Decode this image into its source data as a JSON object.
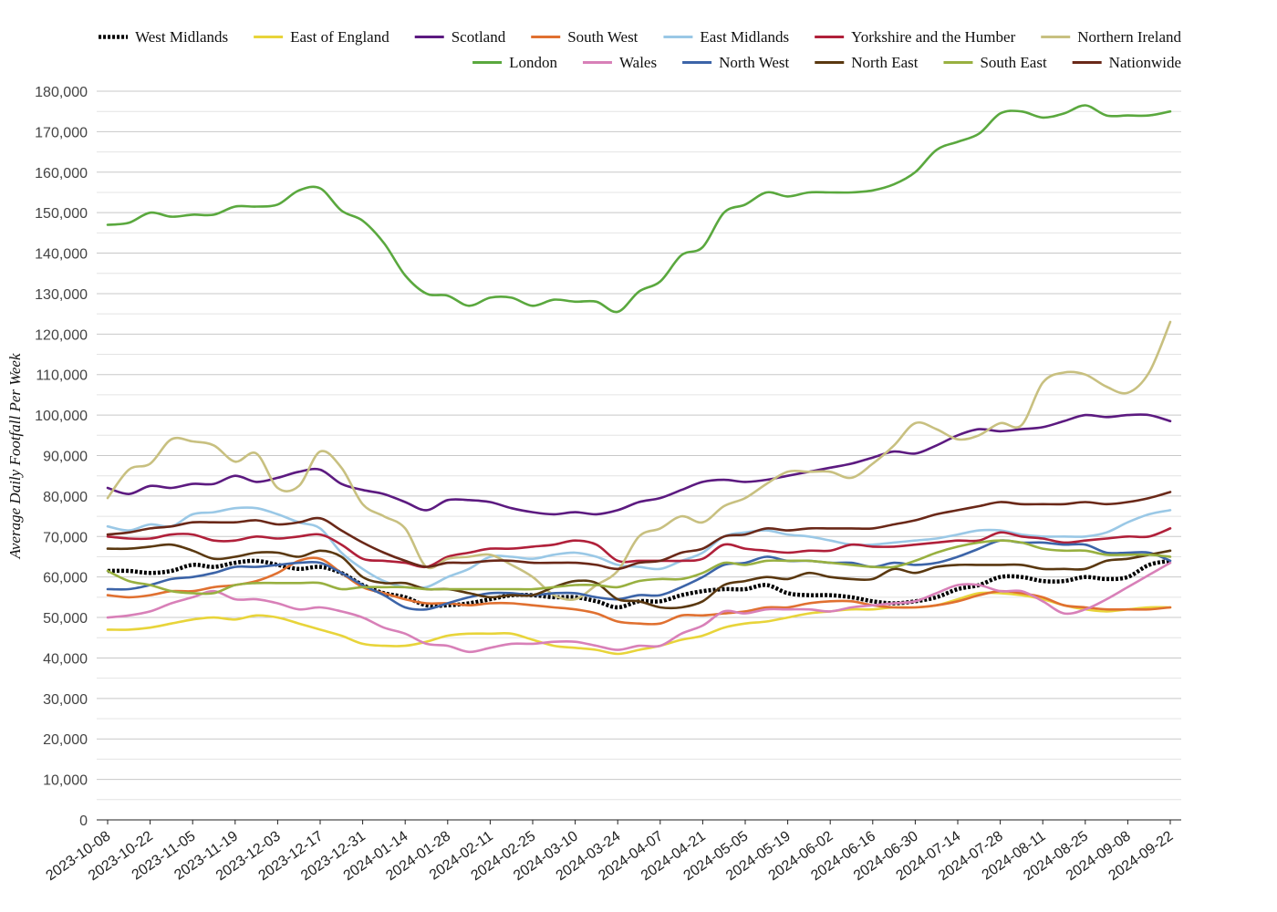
{
  "chart_data": {
    "type": "line",
    "ylabel": "Average Daily Footfall Per Week",
    "xlabel": "",
    "ylim": [
      0,
      180000
    ],
    "y_tick_step": 10000,
    "y_tick_labels": [
      "0",
      "10,000",
      "20,000",
      "30,000",
      "40,000",
      "50,000",
      "60,000",
      "70,000",
      "80,000",
      "90,000",
      "100,000",
      "110,000",
      "120,000",
      "130,000",
      "140,000",
      "150,000",
      "160,000",
      "170,000",
      "180,000"
    ],
    "grid": true,
    "minor_grid": true,
    "legend_position": "top",
    "x_tick_labels": [
      "2023-10-08",
      "2023-10-22",
      "2023-11-05",
      "2023-11-19",
      "2023-12-03",
      "2023-12-17",
      "2023-12-31",
      "2024-01-14",
      "2024-01-28",
      "2024-02-11",
      "2024-02-25",
      "2024-03-10",
      "2024-03-24",
      "2024-04-07",
      "2024-04-21",
      "2024-05-05",
      "2024-05-19",
      "2024-06-02",
      "2024-06-16",
      "2024-06-30",
      "2024-07-14",
      "2024-07-28",
      "2024-08-11",
      "2024-08-25",
      "2024-09-08",
      "2024-09-22"
    ],
    "x": [
      "2023-10-08",
      "2023-10-15",
      "2023-10-22",
      "2023-10-29",
      "2023-11-05",
      "2023-11-12",
      "2023-11-19",
      "2023-11-26",
      "2023-12-03",
      "2023-12-10",
      "2023-12-17",
      "2023-12-24",
      "2023-12-31",
      "2024-01-07",
      "2024-01-14",
      "2024-01-21",
      "2024-01-28",
      "2024-02-04",
      "2024-02-11",
      "2024-02-18",
      "2024-02-25",
      "2024-03-03",
      "2024-03-10",
      "2024-03-17",
      "2024-03-24",
      "2024-03-31",
      "2024-04-07",
      "2024-04-14",
      "2024-04-21",
      "2024-04-28",
      "2024-05-05",
      "2024-05-12",
      "2024-05-19",
      "2024-05-26",
      "2024-06-02",
      "2024-06-09",
      "2024-06-16",
      "2024-06-23",
      "2024-06-30",
      "2024-07-07",
      "2024-07-14",
      "2024-07-21",
      "2024-07-28",
      "2024-08-04",
      "2024-08-11",
      "2024-08-18",
      "2024-08-25",
      "2024-09-01",
      "2024-09-08",
      "2024-09-15",
      "2024-09-22"
    ],
    "series": [
      {
        "name": "West Midlands",
        "color": "#000000",
        "dashed": true,
        "values": [
          61500,
          61500,
          61000,
          61500,
          63000,
          62500,
          63500,
          64000,
          63000,
          62000,
          62500,
          61000,
          58000,
          56000,
          55000,
          53000,
          53000,
          53500,
          54500,
          55500,
          55500,
          55000,
          55000,
          54000,
          52500,
          54000,
          54000,
          55500,
          56500,
          57000,
          57000,
          58000,
          56000,
          55500,
          55500,
          55000,
          54000,
          53500,
          54000,
          55000,
          57000,
          58000,
          60000,
          60000,
          59000,
          59000,
          60000,
          59500,
          60000,
          63000,
          64000
        ]
      },
      {
        "name": "East of England",
        "color": "#e8d43a",
        "dashed": false,
        "values": [
          47000,
          47000,
          47500,
          48500,
          49500,
          50000,
          49500,
          50500,
          50000,
          48500,
          47000,
          45500,
          43500,
          43000,
          43000,
          44000,
          45500,
          46000,
          46000,
          46000,
          44500,
          43000,
          42500,
          42000,
          41000,
          42000,
          43000,
          44500,
          45500,
          47500,
          48500,
          49000,
          50000,
          51000,
          51500,
          52000,
          52000,
          52500,
          52500,
          53000,
          54500,
          56000,
          56000,
          55500,
          54500,
          53000,
          52000,
          51500,
          52000,
          52500,
          52500
        ]
      },
      {
        "name": "Scotland",
        "color": "#5c1a80",
        "dashed": false,
        "values": [
          82000,
          80500,
          82500,
          82000,
          83000,
          83000,
          85000,
          83500,
          84500,
          86000,
          86500,
          83000,
          81500,
          80500,
          78500,
          76500,
          79000,
          79000,
          78500,
          77000,
          76000,
          75500,
          76000,
          75500,
          76500,
          78500,
          79500,
          81500,
          83500,
          84000,
          83500,
          84000,
          85000,
          86000,
          87000,
          88000,
          89500,
          91000,
          90500,
          92500,
          95000,
          96500,
          96000,
          96500,
          97000,
          98500,
          100000,
          99500,
          100000,
          100000,
          98500
        ]
      },
      {
        "name": "South West",
        "color": "#e07030",
        "dashed": false,
        "values": [
          55500,
          55000,
          55500,
          56500,
          56500,
          57500,
          58000,
          59000,
          61000,
          64000,
          64500,
          61000,
          57500,
          56000,
          54500,
          53500,
          53500,
          53000,
          53500,
          53500,
          53000,
          52500,
          52000,
          51000,
          49000,
          48500,
          48500,
          50500,
          50500,
          51000,
          51500,
          52500,
          52500,
          53500,
          54000,
          54000,
          53000,
          52500,
          52500,
          53000,
          54000,
          55500,
          56500,
          56000,
          55000,
          53000,
          52500,
          52000,
          52000,
          52000,
          52500
        ]
      },
      {
        "name": "East Midlands",
        "color": "#9ac8e6",
        "dashed": false,
        "values": [
          72500,
          71500,
          73000,
          72500,
          75500,
          76000,
          77000,
          77000,
          75500,
          73500,
          72000,
          66000,
          62000,
          59000,
          57500,
          57500,
          60000,
          62000,
          65000,
          65000,
          64500,
          65500,
          66000,
          65000,
          63000,
          62500,
          62000,
          64000,
          66000,
          70000,
          71000,
          71500,
          70500,
          70000,
          69000,
          68000,
          68000,
          68500,
          69000,
          69500,
          70500,
          71500,
          71500,
          70500,
          70000,
          70000,
          70000,
          71000,
          73500,
          75500,
          76500
        ]
      },
      {
        "name": "Yorkshire and the Humber",
        "color": "#b0203a",
        "dashed": false,
        "values": [
          70000,
          69500,
          69500,
          70500,
          70500,
          69000,
          69000,
          70000,
          69500,
          70000,
          70500,
          68000,
          64500,
          64000,
          63500,
          62500,
          65000,
          66000,
          67000,
          67000,
          67500,
          68000,
          69000,
          68000,
          64000,
          64000,
          64000,
          64000,
          64500,
          68000,
          67000,
          66500,
          66000,
          66500,
          66500,
          68000,
          67500,
          67500,
          68000,
          68500,
          69000,
          69000,
          71000,
          70000,
          69500,
          68500,
          69000,
          69500,
          70000,
          70000,
          72000
        ]
      },
      {
        "name": "Northern Ireland",
        "color": "#c8c080",
        "dashed": false,
        "values": [
          79500,
          86500,
          88000,
          94000,
          93500,
          92500,
          88500,
          90500,
          82000,
          82500,
          91000,
          87000,
          78000,
          75000,
          72000,
          62500,
          64500,
          65000,
          65500,
          63000,
          60000,
          55500,
          54500,
          58000,
          61500,
          70000,
          72000,
          75000,
          73500,
          77500,
          79500,
          83000,
          86000,
          86000,
          86000,
          84500,
          88000,
          92500,
          98000,
          96500,
          94000,
          95000,
          98000,
          97500,
          108000,
          110500,
          110000,
          107000,
          105500,
          110500,
          123000
        ]
      },
      {
        "name": "London",
        "color": "#5aa83e",
        "dashed": false,
        "values": [
          147000,
          147500,
          150000,
          149000,
          149500,
          149500,
          151500,
          151500,
          152000,
          155500,
          156000,
          150500,
          148000,
          142500,
          134500,
          130000,
          129500,
          127000,
          129000,
          129000,
          127000,
          128500,
          128000,
          128000,
          125500,
          130500,
          133000,
          139500,
          141500,
          150000,
          152000,
          155000,
          154000,
          155000,
          155000,
          155000,
          155500,
          157000,
          160000,
          165500,
          167500,
          169500,
          174500,
          175000,
          173500,
          174500,
          176500,
          174000,
          174000,
          174000,
          175000
        ]
      },
      {
        "name": "Wales",
        "color": "#d880b8",
        "dashed": false,
        "values": [
          50000,
          50500,
          51500,
          53500,
          55000,
          56500,
          54500,
          54500,
          53500,
          52000,
          52500,
          51500,
          50000,
          47500,
          46000,
          43500,
          43000,
          41500,
          42500,
          43500,
          43500,
          44000,
          44000,
          43000,
          42000,
          43000,
          43000,
          46000,
          48000,
          51500,
          51000,
          52000,
          52000,
          52000,
          51500,
          52500,
          53000,
          53500,
          54000,
          56000,
          58000,
          58000,
          56500,
          56500,
          54000,
          51000,
          52000,
          54500,
          57500,
          60500,
          63500
        ]
      },
      {
        "name": "North West",
        "color": "#3c64a8",
        "dashed": false,
        "values": [
          57000,
          57000,
          58000,
          59500,
          60000,
          61000,
          62500,
          62500,
          63000,
          63500,
          63500,
          61000,
          58000,
          55500,
          52500,
          52000,
          53500,
          55000,
          56000,
          56000,
          55500,
          56000,
          56000,
          55000,
          54500,
          55500,
          55500,
          57500,
          60000,
          63000,
          63500,
          65000,
          64000,
          64000,
          63500,
          63500,
          62500,
          63500,
          63000,
          63500,
          65000,
          67000,
          69000,
          68500,
          68500,
          68000,
          68000,
          66000,
          66000,
          66000,
          64000
        ]
      },
      {
        "name": "North East",
        "color": "#5a3810",
        "dashed": false,
        "values": [
          67000,
          67000,
          67500,
          68000,
          66500,
          64500,
          65000,
          66000,
          66000,
          65000,
          66500,
          65000,
          60000,
          58500,
          58500,
          57000,
          57000,
          56000,
          55000,
          55500,
          55500,
          57500,
          59000,
          58500,
          54500,
          54000,
          52500,
          52500,
          54000,
          58000,
          59000,
          60000,
          59500,
          61000,
          60000,
          59500,
          59500,
          62000,
          61000,
          62500,
          63000,
          63000,
          63000,
          63000,
          62000,
          62000,
          62000,
          64000,
          64500,
          65500,
          66500
        ]
      },
      {
        "name": "South East",
        "color": "#98b040",
        "dashed": false,
        "values": [
          61500,
          59000,
          58000,
          56500,
          56000,
          56000,
          58000,
          58500,
          58500,
          58500,
          58500,
          57000,
          57500,
          57500,
          57500,
          57000,
          57000,
          57000,
          57000,
          57000,
          57000,
          57500,
          58000,
          58000,
          57500,
          59000,
          59500,
          59500,
          61000,
          63500,
          63000,
          64000,
          64000,
          64000,
          63500,
          63000,
          62500,
          62500,
          64000,
          66000,
          67500,
          68500,
          69000,
          68500,
          67000,
          66500,
          66500,
          65500,
          65500,
          65500,
          65000
        ]
      },
      {
        "name": "Nationwide",
        "color": "#6a2818",
        "dashed": false,
        "values": [
          70500,
          71000,
          72000,
          72500,
          73500,
          73500,
          73500,
          74000,
          73000,
          73500,
          74500,
          71500,
          68500,
          66000,
          64000,
          62500,
          63500,
          63500,
          64000,
          64000,
          63500,
          63500,
          63500,
          63000,
          62000,
          63500,
          64000,
          66000,
          67000,
          70000,
          70500,
          72000,
          71500,
          72000,
          72000,
          72000,
          72000,
          73000,
          74000,
          75500,
          76500,
          77500,
          78500,
          78000,
          78000,
          78000,
          78500,
          78000,
          78500,
          79500,
          81000
        ]
      }
    ]
  }
}
